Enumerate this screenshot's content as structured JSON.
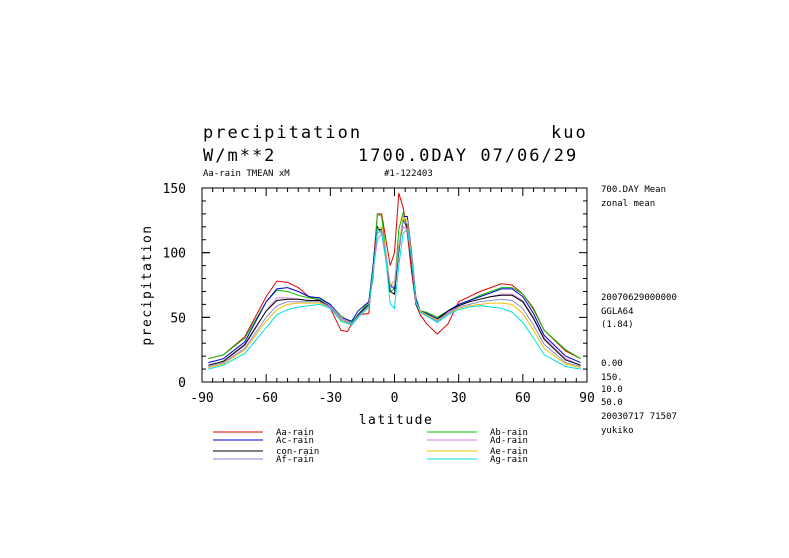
{
  "header": {
    "title": "precipitation",
    "model": "kuo",
    "units": "W/m**2",
    "time": "1700.0DAY 07/06/29",
    "subtitle_left": "Aa-rain TMEAN xM",
    "subtitle_id": "#1-122403"
  },
  "right_info": {
    "line1": "700.DAY Mean",
    "line2": "zonal mean",
    "date_code": "20070629000000",
    "grid": "GGLA64",
    "grid_sub": "(1.84)",
    "v1": "0.00",
    "v2": "150.",
    "v3": "10.0",
    "v4": "50.0",
    "footer_date": "20030717  71507",
    "author": "yukiko"
  },
  "chart_data": {
    "type": "line",
    "xlabel": "latitude",
    "ylabel": "precipitation",
    "xlim": [
      -90,
      90
    ],
    "ylim": [
      0,
      150
    ],
    "xticks": [
      -90,
      -60,
      -30,
      0,
      30,
      60,
      90
    ],
    "yticks": [
      0,
      50,
      100,
      150
    ],
    "series": [
      {
        "name": "Aa-rain",
        "color": "#e00000",
        "x": [
          -87,
          -80,
          -70,
          -60,
          -55,
          -50,
          -45,
          -40,
          -35,
          -30,
          -25,
          -22,
          -20,
          -17,
          -12,
          -10,
          -8,
          -6,
          -4,
          -2,
          0,
          2,
          4,
          6,
          8,
          10,
          12,
          15,
          20,
          25,
          30,
          35,
          40,
          45,
          50,
          55,
          60,
          65,
          70,
          80,
          87
        ],
        "y": [
          18,
          21,
          35,
          66,
          78,
          77,
          73,
          66,
          63,
          57,
          40,
          39,
          45,
          52,
          53,
          90,
          130,
          130,
          110,
          90,
          100,
          146,
          135,
          115,
          85,
          60,
          52,
          45,
          37,
          45,
          62,
          66,
          70,
          73,
          76,
          75,
          68,
          57,
          40,
          24,
          18
        ]
      },
      {
        "name": "Ab-rain",
        "color": "#00c000",
        "x": [
          -87,
          -80,
          -70,
          -60,
          -55,
          -50,
          -45,
          -40,
          -35,
          -30,
          -25,
          -20,
          -17,
          -12,
          -10,
          -8,
          -6,
          -4,
          -2,
          0,
          2,
          4,
          6,
          8,
          10,
          12,
          15,
          20,
          25,
          30,
          35,
          40,
          45,
          50,
          55,
          60,
          65,
          70,
          80,
          87
        ],
        "y": [
          18,
          21,
          34,
          62,
          71,
          70,
          67,
          65,
          64,
          60,
          51,
          46,
          52,
          62,
          80,
          130,
          128,
          100,
          70,
          72,
          118,
          131,
          120,
          95,
          62,
          55,
          54,
          50,
          55,
          60,
          63,
          67,
          70,
          73,
          73,
          68,
          56,
          40,
          25,
          18
        ]
      },
      {
        "name": "Ac-rain",
        "color": "#0000c8",
        "x": [
          -87,
          -80,
          -70,
          -60,
          -55,
          -50,
          -45,
          -40,
          -35,
          -30,
          -25,
          -20,
          -17,
          -12,
          -10,
          -8,
          -6,
          -4,
          -2,
          0,
          2,
          4,
          6,
          8,
          10,
          12,
          15,
          20,
          25,
          30,
          35,
          40,
          45,
          50,
          55,
          60,
          65,
          70,
          80,
          87
        ],
        "y": [
          15,
          18,
          31,
          62,
          72,
          73,
          70,
          66,
          65,
          60,
          50,
          47,
          55,
          62,
          90,
          120,
          115,
          95,
          75,
          72,
          100,
          128,
          128,
          100,
          65,
          55,
          53,
          49,
          55,
          60,
          63,
          66,
          69,
          72,
          72,
          66,
          53,
          36,
          20,
          15
        ]
      },
      {
        "name": "Ad-rain",
        "color": "#d080e0",
        "x": [
          -87,
          -80,
          -70,
          -60,
          -55,
          -50,
          -45,
          -40,
          -35,
          -30,
          -25,
          -20,
          -17,
          -12,
          -10,
          -8,
          -6,
          -4,
          -2,
          0,
          2,
          4,
          6,
          8,
          10,
          12,
          15,
          20,
          25,
          30,
          35,
          40,
          45,
          50,
          55,
          60,
          65,
          70,
          80,
          87
        ],
        "y": [
          13,
          16,
          28,
          55,
          65,
          65,
          64,
          63,
          63,
          59,
          50,
          45,
          50,
          58,
          85,
          110,
          115,
          98,
          75,
          78,
          105,
          120,
          118,
          95,
          62,
          55,
          52,
          48,
          54,
          59,
          62,
          64,
          66,
          68,
          68,
          63,
          50,
          34,
          18,
          13
        ]
      },
      {
        "name": "con-rain",
        "color": "#000000",
        "x": [
          -87,
          -80,
          -70,
          -60,
          -55,
          -50,
          -45,
          -40,
          -35,
          -30,
          -25,
          -20,
          -17,
          -12,
          -10,
          -8,
          -6,
          -4,
          -2,
          0,
          2,
          4,
          6,
          8,
          10,
          12,
          15,
          20,
          25,
          30,
          35,
          40,
          45,
          50,
          55,
          60,
          65,
          70,
          80,
          87
        ],
        "y": [
          13,
          16,
          29,
          55,
          63,
          64,
          64,
          63,
          63,
          58,
          48,
          44,
          52,
          60,
          88,
          118,
          118,
          95,
          70,
          68,
          102,
          125,
          120,
          92,
          60,
          54,
          52,
          48,
          55,
          59,
          62,
          64,
          66,
          67,
          67,
          62,
          49,
          33,
          17,
          13
        ]
      },
      {
        "name": "Ae-rain",
        "color": "#f0c000",
        "x": [
          -87,
          -80,
          -70,
          -60,
          -55,
          -50,
          -45,
          -40,
          -35,
          -30,
          -25,
          -20,
          -17,
          -12,
          -10,
          -8,
          -6,
          -4,
          -2,
          0,
          2,
          4,
          6,
          8,
          10,
          12,
          15,
          20,
          25,
          30,
          35,
          40,
          45,
          50,
          55,
          60,
          65,
          70,
          80,
          87
        ],
        "y": [
          11,
          14,
          25,
          47,
          56,
          60,
          61,
          61,
          61,
          58,
          48,
          44,
          50,
          58,
          85,
          118,
          120,
          100,
          75,
          75,
          105,
          128,
          125,
          98,
          62,
          55,
          52,
          48,
          53,
          57,
          59,
          60,
          61,
          61,
          60,
          53,
          40,
          26,
          14,
          11
        ]
      },
      {
        "name": "Af-rain",
        "color": "#8c8cd8",
        "x": [
          -87,
          -80,
          -70,
          -60,
          -55,
          -50,
          -45,
          -40,
          -35,
          -30,
          -25,
          -20,
          -17,
          -12,
          -10,
          -8,
          -6,
          -4,
          -2,
          0,
          2,
          4,
          6,
          8,
          10,
          12,
          15,
          20,
          25,
          30,
          35,
          40,
          45,
          50,
          55,
          60,
          65,
          70,
          80,
          87
        ],
        "y": [
          12,
          15,
          26,
          50,
          59,
          62,
          62,
          62,
          62,
          58,
          49,
          45,
          51,
          59,
          86,
          115,
          117,
          98,
          73,
          74,
          103,
          124,
          122,
          95,
          61,
          54,
          51,
          47,
          53,
          58,
          60,
          62,
          63,
          64,
          63,
          57,
          44,
          29,
          15,
          12
        ]
      },
      {
        "name": "Ag-rain",
        "color": "#00e0e0",
        "x": [
          -87,
          -80,
          -70,
          -60,
          -55,
          -50,
          -45,
          -40,
          -35,
          -30,
          -25,
          -20,
          -17,
          -12,
          -10,
          -8,
          -6,
          -4,
          -2,
          0,
          2,
          4,
          6,
          8,
          10,
          12,
          15,
          20,
          25,
          30,
          35,
          40,
          45,
          50,
          55,
          60,
          65,
          70,
          80,
          87
        ],
        "y": [
          10,
          13,
          22,
          42,
          52,
          56,
          58,
          59,
          60,
          57,
          47,
          44,
          50,
          58,
          85,
          118,
          115,
          95,
          60,
          57,
          90,
          115,
          118,
          95,
          62,
          54,
          51,
          46,
          52,
          56,
          58,
          59,
          58,
          57,
          54,
          46,
          34,
          21,
          12,
          10
        ]
      }
    ],
    "legend": [
      {
        "name": "Aa-rain",
        "color": "#e00000"
      },
      {
        "name": "Ab-rain",
        "color": "#00c000"
      },
      {
        "name": "Ac-rain",
        "color": "#0000c8"
      },
      {
        "name": "Ad-rain",
        "color": "#d080e0"
      },
      {
        "name": "con-rain",
        "color": "#000000"
      },
      {
        "name": "Ae-rain",
        "color": "#f0c000"
      },
      {
        "name": "Af-rain",
        "color": "#8c8cd8"
      },
      {
        "name": "Ag-rain",
        "color": "#00e0e0"
      }
    ]
  }
}
